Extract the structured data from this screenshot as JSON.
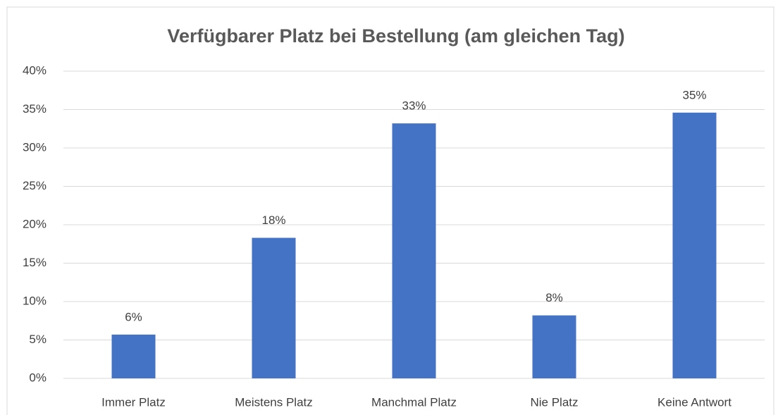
{
  "chart_data": {
    "type": "bar",
    "title": "Verfügbarer Platz bei Bestellung (am gleichen Tag)",
    "categories": [
      "Immer Platz",
      "Meistens Platz",
      "Manchmal Platz",
      "Nie Platz",
      "Keine Antwort"
    ],
    "values": [
      5.7,
      18.3,
      33.2,
      8.2,
      34.6
    ],
    "value_labels": [
      "6%",
      "18%",
      "33%",
      "8%",
      "35%"
    ],
    "color": "#4472c4",
    "ylim": [
      0,
      40
    ],
    "yticks": [
      {
        "value": 0,
        "label": "0%"
      },
      {
        "value": 5,
        "label": "5%"
      },
      {
        "value": 10,
        "label": "10%"
      },
      {
        "value": 15,
        "label": "15%"
      },
      {
        "value": 20,
        "label": "20%"
      },
      {
        "value": 25,
        "label": "25%"
      },
      {
        "value": 30,
        "label": "30%"
      },
      {
        "value": 35,
        "label": "35%"
      },
      {
        "value": 40,
        "label": "40%"
      }
    ],
    "grid": true
  }
}
